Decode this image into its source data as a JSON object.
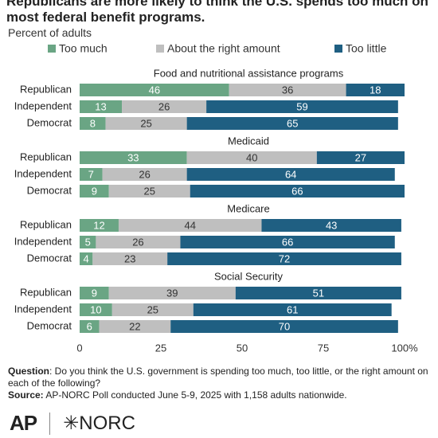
{
  "chart_data": {
    "type": "bar",
    "orientation": "horizontal",
    "stacked": true,
    "title": "Republicans are more likely to think the U.S. spends too much on most federal benefit programs.",
    "subtitle": "Percent of adults",
    "series": [
      {
        "name": "Too much",
        "color": "#6aa584",
        "label_color": "#ffffff"
      },
      {
        "name": "About the right amount",
        "color": "#bfbfbf",
        "label_color": "#333333"
      },
      {
        "name": "Too little",
        "color": "#1f5f82",
        "label_color": "#ffffff"
      }
    ],
    "panels": [
      {
        "title": "Food and nutritional assistance programs",
        "categories": [
          "Republican",
          "Independent",
          "Democrat"
        ],
        "values": [
          [
            46,
            36,
            18
          ],
          [
            13,
            26,
            59
          ],
          [
            8,
            25,
            65
          ]
        ]
      },
      {
        "title": "Medicaid",
        "categories": [
          "Republican",
          "Independent",
          "Democrat"
        ],
        "values": [
          [
            33,
            40,
            27
          ],
          [
            7,
            26,
            64
          ],
          [
            9,
            25,
            66
          ]
        ]
      },
      {
        "title": "Medicare",
        "categories": [
          "Republican",
          "Independent",
          "Democrat"
        ],
        "values": [
          [
            12,
            44,
            43
          ],
          [
            5,
            26,
            66
          ],
          [
            4,
            23,
            72
          ]
        ]
      },
      {
        "title": "Social Security",
        "categories": [
          "Republican",
          "Independent",
          "Democrat"
        ],
        "values": [
          [
            9,
            39,
            51
          ],
          [
            10,
            25,
            61
          ],
          [
            6,
            22,
            70
          ]
        ]
      }
    ],
    "xlim": [
      0,
      100
    ],
    "xticks": [
      0,
      25,
      50,
      75,
      {
        "value": 100,
        "label": "100%"
      }
    ],
    "notes": {
      "question_label": "Question",
      "question": ": Do you think the U.S. government is spending too much, too little, or the right amount on each of the following?",
      "source_label": "Source:",
      "source": " AP-NORC Poll conducted June 5-9, 2025 with 1,158 adults nationwide."
    },
    "logos": [
      "AP",
      "NORC"
    ]
  }
}
